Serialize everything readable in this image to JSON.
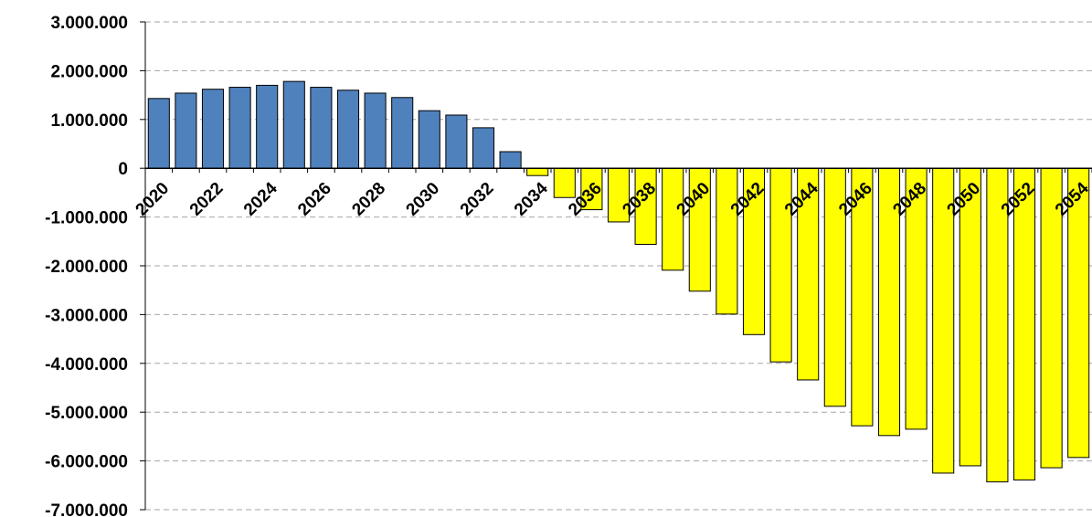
{
  "chart_data": {
    "type": "bar",
    "title": "",
    "xlabel": "",
    "ylabel": "",
    "ylim": [
      -7000000,
      3000000
    ],
    "yticks": [
      3000000,
      2000000,
      1000000,
      0,
      -1000000,
      -2000000,
      -3000000,
      -4000000,
      -5000000,
      -6000000,
      -7000000
    ],
    "ytick_labels": [
      "3.000.000",
      "2.000.000",
      "1.000.000",
      "0",
      "-1.000.000",
      "-2.000.000",
      "-3.000.000",
      "-4.000.000",
      "-5.000.000",
      "-6.000.000",
      "-7.000.000"
    ],
    "categories": [
      "2020",
      "2021",
      "2022",
      "2023",
      "2024",
      "2025",
      "2026",
      "2027",
      "2028",
      "2029",
      "2030",
      "2031",
      "2032",
      "2033",
      "2034",
      "2035",
      "2036",
      "2037",
      "2038",
      "2039",
      "2040",
      "2041",
      "2042",
      "2043",
      "2044",
      "2045",
      "2046",
      "2047",
      "2048",
      "2049",
      "2050",
      "2051",
      "2052",
      "2053",
      "2054"
    ],
    "xtick_labels": [
      "2020",
      "2022",
      "2024",
      "2026",
      "2028",
      "2030",
      "2032",
      "2034",
      "2036",
      "2038",
      "2040",
      "2042",
      "2044",
      "2046",
      "2048",
      "2050",
      "2052",
      "2054"
    ],
    "values": [
      1430000,
      1540000,
      1620000,
      1660000,
      1700000,
      1780000,
      1660000,
      1600000,
      1540000,
      1450000,
      1180000,
      1090000,
      830000,
      340000,
      -150000,
      -600000,
      -850000,
      -1100000,
      -1560000,
      -2090000,
      -2520000,
      -2990000,
      -3410000,
      -3970000,
      -4340000,
      -4880000,
      -5280000,
      -5480000,
      -5350000,
      -6250000,
      -6100000,
      -6430000,
      -6390000,
      -6140000,
      -5930000
    ],
    "grid": true,
    "colors": {
      "positive": "#4F81BD",
      "negative": "#FFFF00",
      "bar_edge": "#000000",
      "grid": "#A6A6A6",
      "axis": "#000000"
    }
  }
}
